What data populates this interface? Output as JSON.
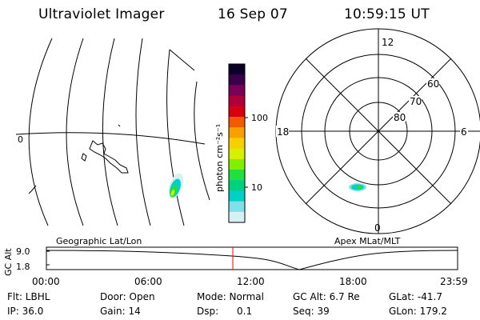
{
  "header": {
    "title": "Ultraviolet Imager",
    "date": "16 Sep 07",
    "time": "10:59:15 UT"
  },
  "geo_panel": {
    "caption": "Geographic Lat/Lon",
    "lon_label": "0"
  },
  "colorbar": {
    "unit_label": "photon cm⁻²s⁻¹",
    "ticks": [
      "100",
      "10"
    ],
    "colors": [
      "#0b0028",
      "#3a004a",
      "#7a0058",
      "#b0003a",
      "#d8000e",
      "#f05a00",
      "#f8a000",
      "#f6d000",
      "#d8f000",
      "#80f000",
      "#20e040",
      "#00d080",
      "#00d0c8",
      "#80e0e8",
      "#d8f0f4"
    ]
  },
  "polar_panel": {
    "caption": "Apex MLat/MLT",
    "mlt_labels": {
      "top": "12",
      "bottom": "0",
      "left": "18",
      "right": "6"
    },
    "lat_labels": [
      "60",
      "70",
      "80"
    ]
  },
  "gc_alt_plot": {
    "ylabel": "GC Alt",
    "yticks": [
      "9.0",
      "1.8"
    ],
    "xticks": [
      "00:00",
      "06:00",
      "12:00",
      "18:00",
      "23:59"
    ],
    "current_time_marker_color": "#ff0000"
  },
  "info_rows": [
    [
      {
        "name": "flt",
        "text": "Flt: LBHL"
      },
      {
        "name": "door",
        "text": "Door: Open"
      },
      {
        "name": "mode",
        "text": "Mode: Normal"
      },
      {
        "name": "gc-alt",
        "text": "GC Alt: 6.7 Re"
      },
      {
        "name": "glat",
        "text": "GLat: -41.7"
      }
    ],
    [
      {
        "name": "ip",
        "text": "IP: 36.0"
      },
      {
        "name": "gain",
        "text": "Gain: 14"
      },
      {
        "name": "dsp",
        "text": "Dsp:      0.1"
      },
      {
        "name": "seq",
        "text": "Seq: 39"
      },
      {
        "name": "glon",
        "text": "GLon: 179.2"
      }
    ]
  ]
}
